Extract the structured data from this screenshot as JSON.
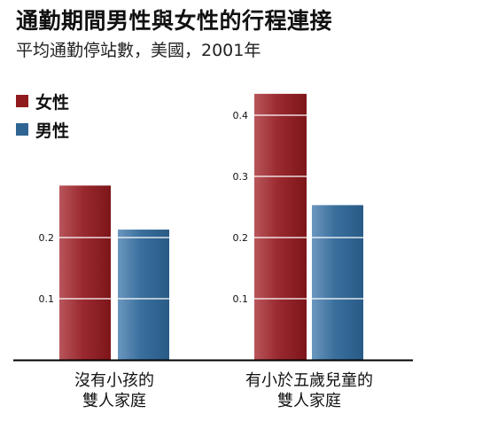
{
  "header": {
    "title": "通勤期間男性與女性的行程連接",
    "subtitle": "平均通勤停站數，美國，2001年"
  },
  "legend": [
    {
      "label": "女性",
      "color": "#8f1b1e"
    },
    {
      "label": "男性",
      "color": "#2f6593"
    }
  ],
  "chart_data": {
    "type": "bar",
    "title": "通勤期間男性與女性的行程連接",
    "subtitle": "平均通勤停站數，美國，2001年",
    "categories": [
      [
        "沒有小孩的",
        "雙人家庭"
      ],
      [
        "有小於五歲兒童的",
        "雙人家庭"
      ]
    ],
    "series": [
      {
        "name": "女性",
        "values": [
          0.285,
          0.435
        ],
        "color": "#8f1b1e"
      },
      {
        "name": "男性",
        "values": [
          0.213,
          0.253
        ],
        "color": "#2f6593"
      }
    ],
    "panel_ticks": [
      [
        0.1,
        0.2
      ],
      [
        0.1,
        0.2,
        0.3,
        0.4
      ]
    ],
    "ylim": [
      0,
      0.45
    ],
    "grid": true
  }
}
